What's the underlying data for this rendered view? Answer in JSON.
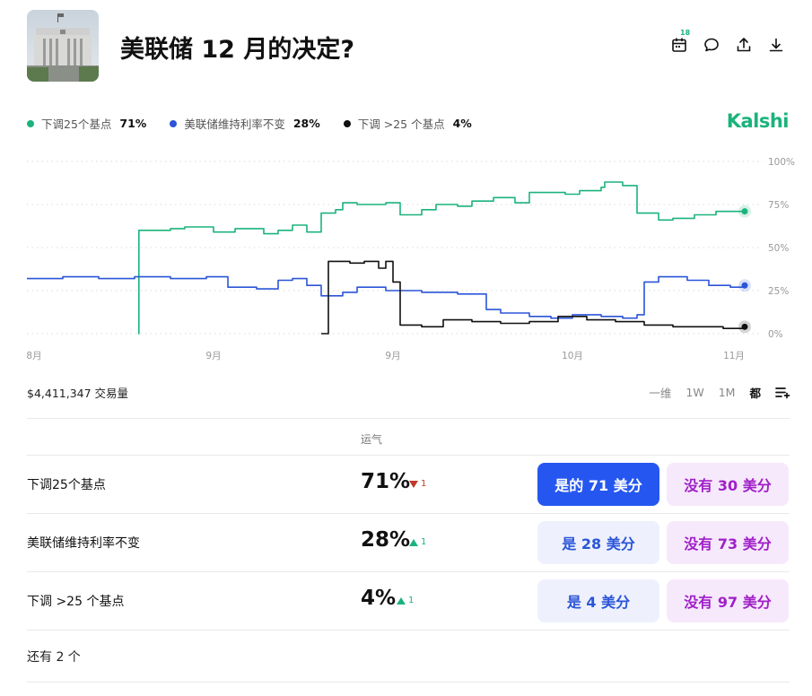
{
  "market": {
    "title": "美联储 12 月的决定?"
  },
  "header_actions": {
    "calendar_badge": "18"
  },
  "legend": [
    {
      "label": "下调25个基点",
      "pct": "71%",
      "color": "#1bb37c"
    },
    {
      "label": "美联储维持利率不变",
      "pct": "28%",
      "color": "#2b55d8"
    },
    {
      "label": "下调 >25 个基点",
      "pct": "4%",
      "color": "#111111"
    }
  ],
  "brand": "Kalshi",
  "chart_data": {
    "type": "line",
    "x_ticks": [
      "8月",
      "9月",
      "9月",
      "10月",
      "11月"
    ],
    "y_ticks": [
      "100%",
      "75%",
      "50%",
      "25%",
      "0%"
    ],
    "ylim": [
      0,
      100
    ],
    "grid": true,
    "series": [
      {
        "name": "下调25个基点",
        "color": "#1bb37c",
        "x": [
          0.0,
          0.15,
          0.155,
          0.156,
          0.2,
          0.22,
          0.26,
          0.29,
          0.33,
          0.35,
          0.37,
          0.39,
          0.41,
          0.43,
          0.44,
          0.46,
          0.5,
          0.52,
          0.55,
          0.57,
          0.6,
          0.62,
          0.65,
          0.68,
          0.7,
          0.75,
          0.77,
          0.8,
          0.805,
          0.83,
          0.85,
          0.88,
          0.9,
          0.93,
          0.96,
          1.0
        ],
        "values": [
          null,
          null,
          0,
          60,
          61,
          62,
          59,
          61,
          58,
          60,
          63,
          59,
          70,
          72,
          76,
          75,
          76,
          69,
          72,
          75,
          74,
          77,
          79,
          76,
          82,
          81,
          83,
          85,
          88,
          86,
          70,
          66,
          67,
          69,
          71,
          71
        ]
      },
      {
        "name": "美联储维持利率不变",
        "color": "#2b55d8",
        "x": [
          0.0,
          0.05,
          0.1,
          0.15,
          0.2,
          0.25,
          0.28,
          0.32,
          0.35,
          0.37,
          0.39,
          0.41,
          0.44,
          0.46,
          0.5,
          0.55,
          0.6,
          0.64,
          0.66,
          0.7,
          0.73,
          0.76,
          0.8,
          0.83,
          0.85,
          0.86,
          0.88,
          0.92,
          0.95,
          0.98,
          1.0
        ],
        "values": [
          32,
          33,
          32,
          33,
          32,
          33,
          27,
          26,
          31,
          32,
          28,
          22,
          24,
          27,
          25,
          24,
          23,
          14,
          12,
          10,
          9,
          11,
          10,
          9,
          11,
          30,
          33,
          31,
          28,
          27,
          28
        ]
      },
      {
        "name": "下调 >25 个基点",
        "color": "#111111",
        "x": [
          0.0,
          0.2,
          0.4,
          0.41,
          0.42,
          0.45,
          0.47,
          0.49,
          0.5,
          0.51,
          0.52,
          0.55,
          0.58,
          0.62,
          0.66,
          0.7,
          0.74,
          0.78,
          0.82,
          0.86,
          0.9,
          0.94,
          0.97,
          1.0
        ],
        "values": [
          null,
          null,
          null,
          0,
          42,
          41,
          42,
          38,
          42,
          30,
          5,
          4,
          8,
          7,
          6,
          7,
          10,
          8,
          7,
          5,
          4,
          4,
          3,
          4
        ]
      }
    ]
  },
  "volume": "$4,411,347 交易量",
  "ranges": [
    "一维",
    "1W",
    "1M",
    "都"
  ],
  "active_range": "都",
  "table_header": "运气",
  "outcomes": [
    {
      "label": "下调25个基点",
      "pct": "71%",
      "change": "1",
      "direction": "down",
      "yes": "是的 71 美分",
      "no": "没有 30 美分",
      "primary": true
    },
    {
      "label": "美联储维持利率不变",
      "pct": "28%",
      "change": "1",
      "direction": "up",
      "yes": "是 28 美分",
      "no": "没有 73 美分",
      "primary": false
    },
    {
      "label": "下调 >25 个基点",
      "pct": "4%",
      "change": "1",
      "direction": "up",
      "yes": "是 4 美分",
      "no": "没有 97 美分",
      "primary": false
    }
  ],
  "more": "还有 2 个"
}
